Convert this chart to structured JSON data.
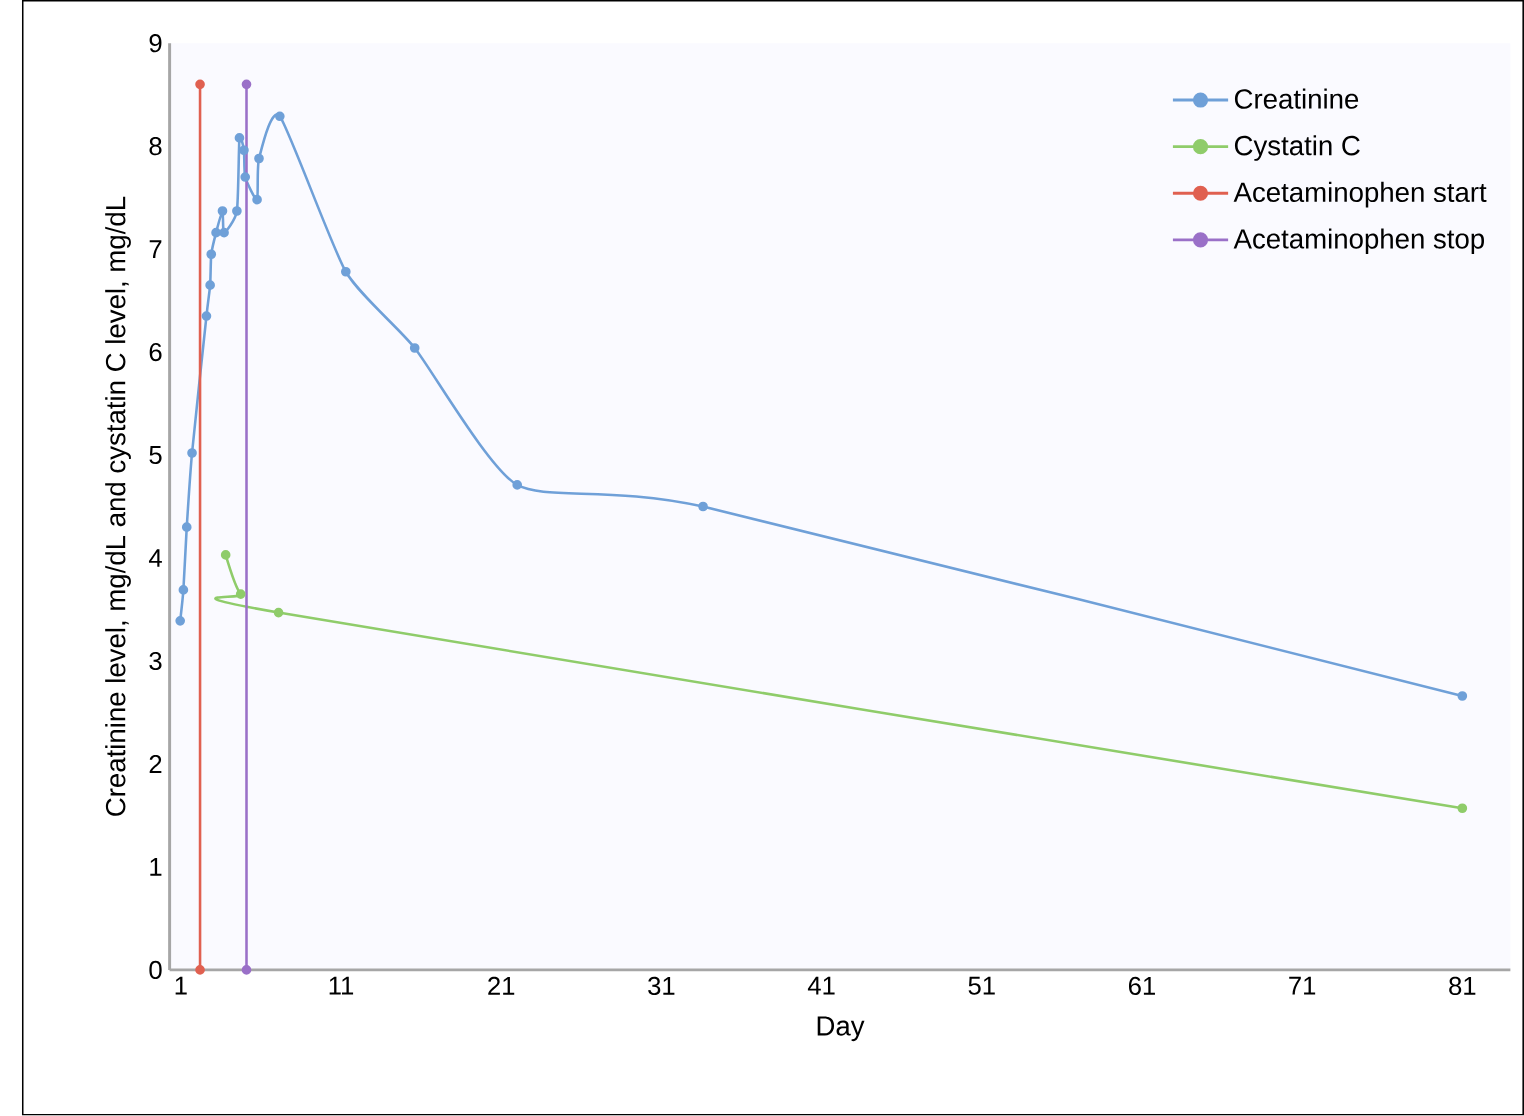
{
  "chart_data": {
    "type": "line",
    "xlabel": "Day",
    "ylabel": "Creatinine level, mg/dL and cystatin C level, mg/dL",
    "xlim": [
      0.3,
      84
    ],
    "ylim": [
      0,
      9
    ],
    "xticks": [
      1,
      11,
      21,
      31,
      41,
      51,
      61,
      71,
      81
    ],
    "yticks": [
      0,
      1,
      2,
      3,
      4,
      5,
      6,
      7,
      8,
      9
    ],
    "grid": false,
    "legend": "top right",
    "marker": "circle",
    "series": [
      {
        "name": "Creatinine",
        "color": "#6fa0d8",
        "x": [
          0.96,
          1.16,
          1.37,
          1.7,
          2.6,
          2.83,
          2.9,
          3.2,
          3.6,
          3.7,
          4.5,
          4.66,
          4.94,
          5.02,
          5.76,
          5.88,
          7.18,
          11.3,
          15.6,
          22,
          33.6,
          81
        ],
        "values": [
          3.39,
          3.69,
          4.3,
          5.02,
          6.35,
          6.65,
          6.95,
          7.16,
          7.37,
          7.16,
          7.37,
          8.08,
          7.96,
          7.7,
          7.48,
          7.88,
          8.29,
          6.78,
          6.04,
          4.71,
          4.5,
          2.66
        ]
      },
      {
        "name": "Cystatin C",
        "color": "#8fcc6a",
        "x": [
          3.8,
          4.74,
          7.1,
          81
        ],
        "values": [
          4.03,
          3.65,
          3.47,
          1.57
        ]
      },
      {
        "name": "Acetaminophen start",
        "color": "#e06050",
        "x": [
          2.2,
          2.2
        ],
        "values": [
          0,
          8.6
        ]
      },
      {
        "name": "Acetaminophen stop",
        "color": "#9a70c8",
        "x": [
          5.1,
          5.1
        ],
        "values": [
          0,
          8.6
        ]
      }
    ]
  }
}
